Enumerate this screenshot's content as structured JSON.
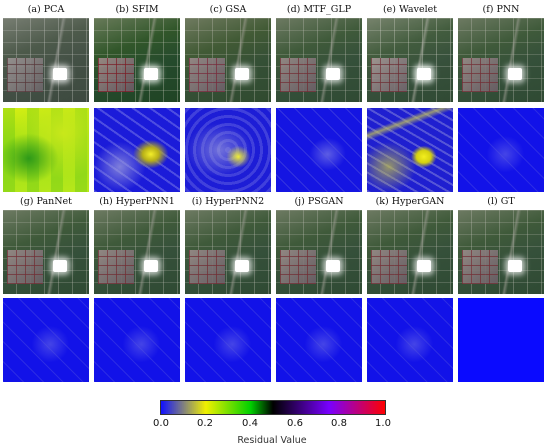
{
  "row1_labels": [
    "(a) PCA",
    "(b) SFIM",
    "(c) GSA",
    "(d) MTF_GLP",
    "(e) Wavelet",
    "(f) PNN"
  ],
  "row2_labels": [
    "(g) PanNet",
    "(h) HyperPNN1",
    "(i) HyperPNN2",
    "(j) PSGAN",
    "(k) HyperGAN",
    "(l) GT"
  ],
  "colorbar": {
    "title": "Residual Value",
    "ticks": [
      "0.0",
      "0.2",
      "0.4",
      "0.6",
      "0.8",
      "1.0"
    ],
    "colors": [
      "#1010ff",
      "#f0f000",
      "#00d000",
      "#000000",
      "#7800ff",
      "#ff0000"
    ]
  }
}
